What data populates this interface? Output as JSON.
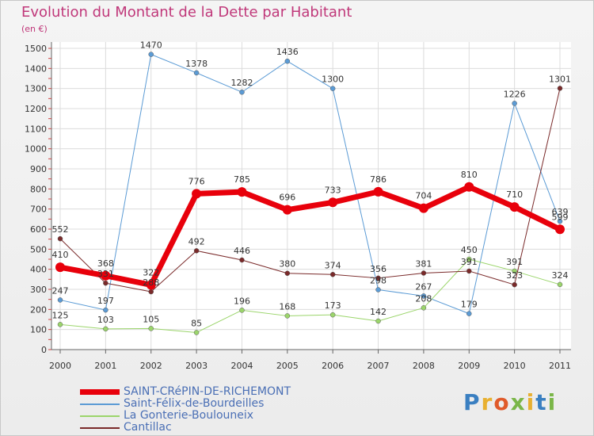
{
  "header": {
    "title": "Evolution du Montant de la Dette par Habitant",
    "subtitle": "(en €)"
  },
  "logo": {
    "text": "Proxiti",
    "colors": [
      "#3a7fc1",
      "#e8b030",
      "#e05a2a",
      "#7ab648"
    ]
  },
  "chart_data": {
    "type": "line",
    "title": "Evolution du Montant de la Dette par Habitant",
    "subtitle": "(en €)",
    "x": [
      "2000",
      "2001",
      "2002",
      "2003",
      "2004",
      "2005",
      "2006",
      "2007",
      "2008",
      "2009",
      "2010",
      "2011"
    ],
    "ylim": [
      0,
      1500
    ],
    "yticks": [
      0,
      100,
      200,
      300,
      400,
      500,
      600,
      700,
      800,
      900,
      1000,
      1100,
      1200,
      1300,
      1400,
      1500
    ],
    "grid": true,
    "legend_position": "bottom-left",
    "series": [
      {
        "name": "SAINT-CRéPIN-DE-RICHEMONT",
        "color": "#e8000b",
        "width": 7,
        "values": [
          410,
          368,
          322,
          776,
          785,
          696,
          733,
          786,
          704,
          810,
          710,
          599
        ],
        "labels": [
          "410",
          "368",
          "322",
          "776",
          "785",
          "696",
          "733",
          "786",
          "704",
          "810",
          "710",
          "599"
        ]
      },
      {
        "name": "Saint-Félix-de-Bourdeilles",
        "color": "#5b9bd5",
        "width": 1,
        "values": [
          247,
          197,
          1470,
          1378,
          1282,
          1436,
          1300,
          298,
          267,
          179,
          1226,
          639
        ],
        "labels": [
          "247",
          "197",
          "1470",
          "1378",
          "1282",
          "1436",
          "1300",
          "298",
          "267",
          "179",
          "1226",
          "639"
        ]
      },
      {
        "name": "La Gonterie-Boulouneix",
        "color": "#9bd56b",
        "width": 1,
        "values": [
          125,
          103,
          105,
          85,
          196,
          168,
          173,
          142,
          208,
          450,
          391,
          324
        ],
        "labels": [
          "125",
          "103",
          "105",
          "85",
          "196",
          "168",
          "173",
          "142",
          "208",
          "450",
          "391",
          "324"
        ]
      },
      {
        "name": "Cantillac",
        "color": "#7a2a2a",
        "width": 1,
        "values": [
          552,
          331,
          288,
          492,
          446,
          380,
          374,
          356,
          381,
          391,
          323,
          1301
        ],
        "labels": [
          "552",
          "331",
          "288",
          "492",
          "446",
          "380",
          "374",
          "356",
          "381",
          "391",
          "323",
          "1301"
        ]
      }
    ]
  }
}
